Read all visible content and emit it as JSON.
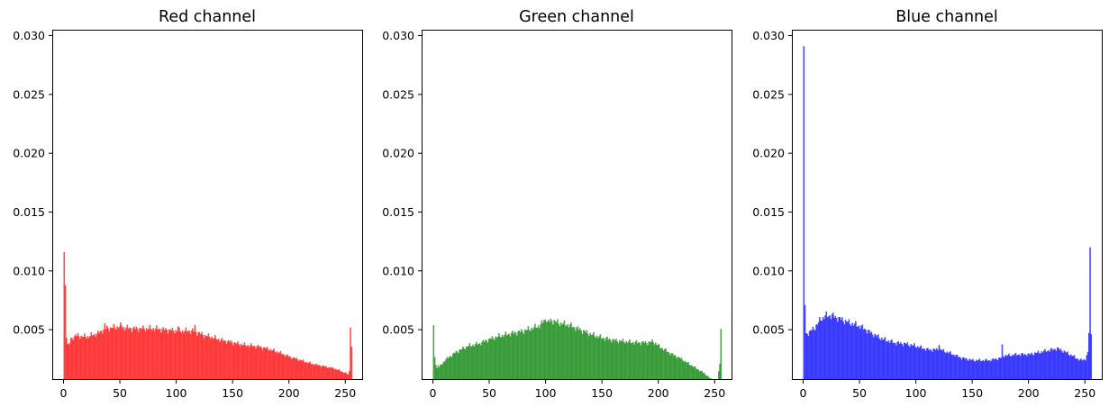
{
  "chart_data": [
    {
      "type": "bar",
      "title": "Red channel",
      "color": "#ff0000",
      "opacity": 0.7,
      "xlim": [
        -10,
        265
      ],
      "ylim": [
        0.0008,
        0.0305
      ],
      "xticks": [
        0,
        50,
        100,
        150,
        200,
        250
      ],
      "yticks": [
        0.005,
        0.01,
        0.015,
        0.02,
        0.025,
        0.03
      ],
      "ytick_labels": [
        "0.005",
        "0.010",
        "0.015",
        "0.020",
        "0.025",
        "0.030"
      ],
      "bins": 256,
      "xlabel": "",
      "ylabel": "",
      "grid": false,
      "profile_x": [
        0,
        1,
        2,
        3,
        4,
        6,
        10,
        20,
        30,
        35,
        36,
        37,
        45,
        50,
        51,
        52,
        60,
        70,
        80,
        100,
        101,
        102,
        110,
        115,
        116,
        117,
        120,
        125,
        130,
        140,
        150,
        160,
        170,
        180,
        190,
        200,
        210,
        220,
        230,
        240,
        245,
        250,
        252,
        253,
        254,
        255
      ],
      "profile_y": [
        0.0116,
        0.0088,
        0.0046,
        0.0038,
        0.0036,
        0.0042,
        0.0045,
        0.0044,
        0.0047,
        0.005,
        0.0054,
        0.0051,
        0.0052,
        0.0053,
        0.0054,
        0.0052,
        0.0051,
        0.0051,
        0.0051,
        0.0049,
        0.0053,
        0.0049,
        0.0049,
        0.0049,
        0.0053,
        0.0048,
        0.0047,
        0.0045,
        0.0044,
        0.0041,
        0.0039,
        0.0037,
        0.0036,
        0.0034,
        0.0031,
        0.0027,
        0.0024,
        0.0021,
        0.0019,
        0.0017,
        0.0015,
        0.0013,
        0.0012,
        0.0015,
        0.0055,
        0.0035
      ]
    },
    {
      "type": "bar",
      "title": "Green channel",
      "color": "#008000",
      "opacity": 0.7,
      "xlim": [
        -10,
        265
      ],
      "ylim": [
        0.0008,
        0.0305
      ],
      "xticks": [
        0,
        50,
        100,
        150,
        200,
        250
      ],
      "yticks": [
        0.005,
        0.01,
        0.015,
        0.02,
        0.025,
        0.03
      ],
      "ytick_labels": [
        "0.005",
        "0.010",
        "0.015",
        "0.020",
        "0.025",
        "0.030"
      ],
      "bins": 256,
      "xlabel": "",
      "ylabel": "",
      "grid": false,
      "profile_x": [
        0,
        1,
        2,
        3,
        4,
        5,
        10,
        20,
        30,
        40,
        50,
        60,
        70,
        80,
        90,
        95,
        100,
        101,
        105,
        110,
        120,
        130,
        140,
        150,
        160,
        170,
        180,
        190,
        195,
        200,
        210,
        220,
        230,
        240,
        245,
        248,
        250,
        252,
        253,
        254,
        255
      ],
      "profile_y": [
        0.0051,
        0.0027,
        0.0021,
        0.0017,
        0.002,
        0.0018,
        0.0024,
        0.0031,
        0.0036,
        0.0038,
        0.0042,
        0.0045,
        0.0047,
        0.0049,
        0.0052,
        0.0054,
        0.006,
        0.0056,
        0.0058,
        0.0056,
        0.0054,
        0.005,
        0.0046,
        0.0043,
        0.0041,
        0.004,
        0.0039,
        0.0039,
        0.004,
        0.0036,
        0.003,
        0.0025,
        0.0019,
        0.0013,
        0.0009,
        0.0007,
        0.0006,
        0.0006,
        0.0015,
        0.0022,
        0.005
      ]
    },
    {
      "type": "bar",
      "title": "Blue channel",
      "color": "#0000ff",
      "opacity": 0.7,
      "xlim": [
        -10,
        265
      ],
      "ylim": [
        0.0008,
        0.0305
      ],
      "xticks": [
        0,
        50,
        100,
        150,
        200,
        250
      ],
      "yticks": [
        0.005,
        0.01,
        0.015,
        0.02,
        0.025,
        0.03
      ],
      "ytick_labels": [
        "0.005",
        "0.010",
        "0.015",
        "0.020",
        "0.025",
        "0.030"
      ],
      "bins": 256,
      "xlabel": "",
      "ylabel": "",
      "grid": false,
      "profile_x": [
        0,
        1,
        2,
        3,
        5,
        10,
        15,
        20,
        25,
        30,
        40,
        50,
        60,
        70,
        80,
        90,
        100,
        110,
        119,
        120,
        121,
        130,
        140,
        150,
        160,
        165,
        170,
        175,
        176,
        177,
        180,
        190,
        200,
        210,
        220,
        225,
        230,
        240,
        245,
        250,
        252,
        253,
        254,
        255
      ],
      "profile_y": [
        0.0291,
        0.0071,
        0.0046,
        0.0047,
        0.0048,
        0.0052,
        0.0059,
        0.0062,
        0.0062,
        0.006,
        0.0056,
        0.0053,
        0.0047,
        0.0042,
        0.0039,
        0.0038,
        0.0036,
        0.0033,
        0.0033,
        0.0039,
        0.0033,
        0.003,
        0.0026,
        0.0024,
        0.0024,
        0.0024,
        0.0025,
        0.0026,
        0.0036,
        0.0028,
        0.0028,
        0.0029,
        0.0029,
        0.0031,
        0.0033,
        0.0034,
        0.0032,
        0.0027,
        0.0024,
        0.0025,
        0.003,
        0.0048,
        0.012,
        0.0047
      ]
    }
  ]
}
